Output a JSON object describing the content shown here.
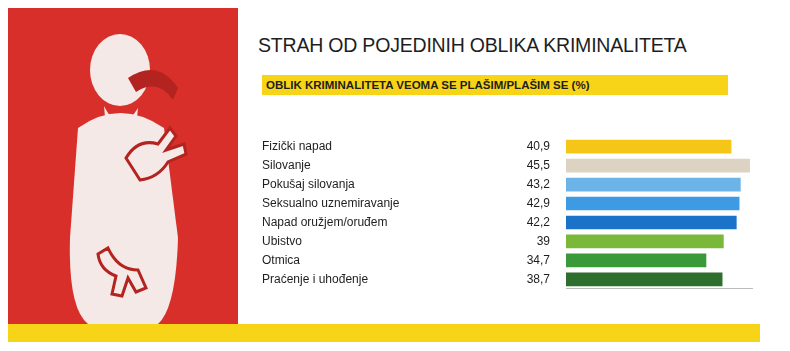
{
  "chart_data": {
    "type": "bar",
    "orientation": "horizontal",
    "title": "STRAH OD POJEDINIH OBLIKA KRIMINALITETA",
    "subtitle": "OBLIK KRIMINALITETA VEOMA SE PLAŠIM/PLAŠIM SE (%)",
    "categories": [
      "Fizički napad",
      "Silovanje",
      "Pokušaj silovanja",
      "Seksualno uznemiravanje",
      "Napad oružjem/oruđem",
      "Ubistvo",
      "Otmica",
      "Praćenje i uhođenje"
    ],
    "values": [
      40.9,
      45.5,
      43.2,
      42.9,
      42.2,
      39,
      34.7,
      38.7
    ],
    "value_labels": [
      "40,9",
      "45,5",
      "43,2",
      "42,9",
      "42,2",
      "39",
      "34,7",
      "38,7"
    ],
    "colors": [
      "#f5c518",
      "#ddd3c3",
      "#6cb4e8",
      "#3d9be3",
      "#1b73c9",
      "#7ab83a",
      "#3a9a3a",
      "#2e6f30"
    ],
    "xlim": [
      0,
      46
    ],
    "grid": false,
    "data_labels": true,
    "tick_labels": "y"
  }
}
